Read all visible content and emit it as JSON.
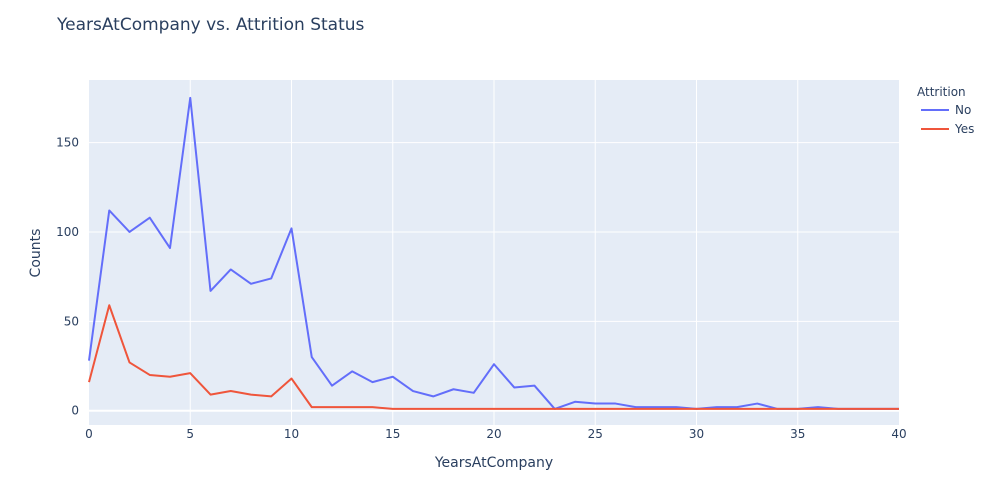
{
  "chart_data": {
    "type": "line",
    "title": "YearsAtCompany vs. Attrition Status",
    "xlabel": "YearsAtCompany",
    "ylabel": "Counts",
    "xlim": [
      0,
      40
    ],
    "ylim": [
      -8,
      185
    ],
    "x_ticks": [
      0,
      5,
      10,
      15,
      20,
      25,
      30,
      35,
      40
    ],
    "y_ticks": [
      0,
      50,
      100,
      150
    ],
    "grid": true,
    "plot_background": "#e5ecf6",
    "legend": {
      "title": "Attrition",
      "position": "top-right"
    },
    "series": [
      {
        "name": "No",
        "color": "#636efa",
        "x": [
          0,
          1,
          2,
          3,
          4,
          5,
          6,
          7,
          8,
          9,
          10,
          11,
          12,
          13,
          14,
          15,
          16,
          17,
          18,
          19,
          20,
          21,
          22,
          23,
          24,
          25,
          26,
          27,
          28,
          29,
          30,
          31,
          32,
          33,
          34,
          35,
          36,
          37,
          40
        ],
        "y": [
          28,
          112,
          100,
          108,
          91,
          175,
          67,
          79,
          71,
          74,
          102,
          30,
          14,
          22,
          16,
          19,
          11,
          8,
          12,
          10,
          26,
          13,
          14,
          1,
          5,
          4,
          4,
          2,
          2,
          2,
          1,
          2,
          2,
          4,
          1,
          1,
          2,
          1,
          1
        ]
      },
      {
        "name": "Yes",
        "color": "#ef553b",
        "x": [
          0,
          1,
          2,
          3,
          4,
          5,
          6,
          7,
          8,
          9,
          10,
          11,
          12,
          13,
          14,
          15,
          16,
          17,
          18,
          19,
          20,
          21,
          22,
          23,
          24,
          25,
          26,
          27,
          28,
          29,
          30,
          31,
          32,
          33,
          34,
          35,
          36,
          37,
          40
        ],
        "y": [
          16,
          59,
          27,
          20,
          19,
          21,
          9,
          11,
          9,
          8,
          18,
          2,
          2,
          2,
          2,
          1,
          1,
          1,
          1,
          1,
          1,
          1,
          1,
          1,
          1,
          1,
          1,
          1,
          1,
          1,
          1,
          1,
          1,
          1,
          1,
          1,
          1,
          1,
          1
        ]
      }
    ]
  }
}
